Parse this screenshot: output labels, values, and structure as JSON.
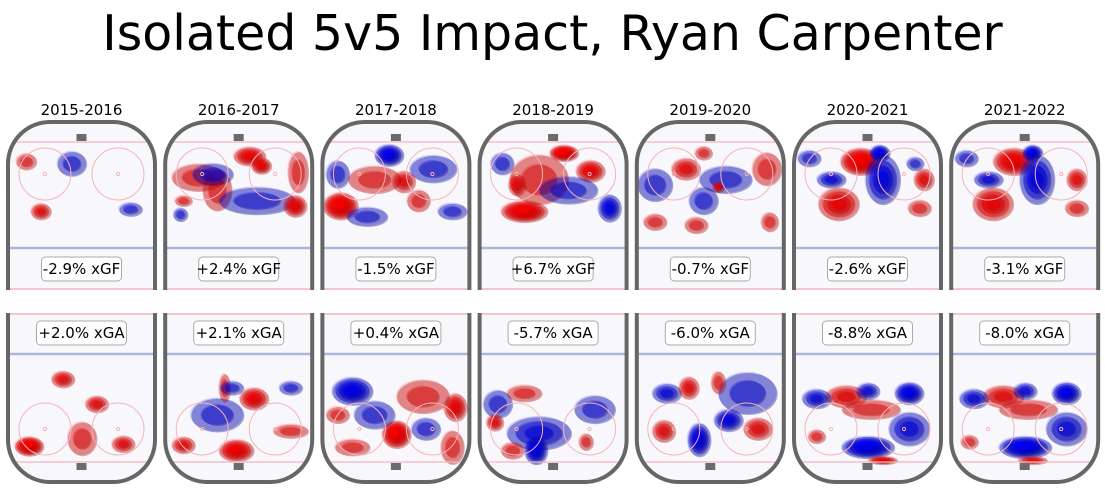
{
  "chart_data": {
    "type": "heatmap",
    "title": "Isolated 5v5 Impact, Ryan Carpenter",
    "panel_rows": [
      "offense (xGF)",
      "defense (xGA)"
    ],
    "colors": {
      "positive": "#ff0000",
      "negative": "#0000ff",
      "ice": "#f8f8fc",
      "boards": "#666666",
      "blue_line": "#a9b7dd",
      "red_line": "#f2b5bd",
      "faceoff_circle": "#f5b3b8",
      "net": "#6b6b6b"
    },
    "seasons": [
      {
        "season": "2015-2016",
        "xgf_label": "-2.9% xGF",
        "xgf_pct": -2.9,
        "xga_label": "+2.0% xGA",
        "xga_pct": 2.0,
        "offense_hotspots": [
          [
            0.12,
            0.18,
            0.07,
            0.06,
            0.35
          ],
          [
            0.43,
            0.2,
            0.1,
            0.09,
            -0.35
          ],
          [
            0.22,
            0.65,
            0.07,
            0.06,
            0.45
          ],
          [
            0.83,
            0.63,
            0.08,
            0.05,
            -0.35
          ]
        ],
        "defense_hotspots": [
          [
            0.37,
            0.22,
            0.08,
            0.06,
            0.45
          ],
          [
            0.6,
            0.45,
            0.08,
            0.06,
            0.5
          ],
          [
            0.14,
            0.84,
            0.1,
            0.07,
            0.95
          ],
          [
            0.5,
            0.77,
            0.1,
            0.12,
            0.4
          ],
          [
            0.78,
            0.82,
            0.08,
            0.06,
            0.5
          ]
        ]
      },
      {
        "season": "2016-2017",
        "xgf_label": "+2.4% xGF",
        "xgf_pct": 2.4,
        "xga_label": "+2.1% xGA",
        "xga_pct": 2.1,
        "offense_hotspots": [
          [
            0.57,
            0.13,
            0.11,
            0.07,
            0.7
          ],
          [
            0.65,
            0.22,
            0.07,
            0.06,
            0.7
          ],
          [
            0.22,
            0.33,
            0.18,
            0.1,
            0.35
          ],
          [
            0.35,
            0.45,
            0.1,
            0.15,
            0.3
          ],
          [
            0.32,
            0.3,
            0.14,
            0.08,
            -0.3
          ],
          [
            0.62,
            0.55,
            0.26,
            0.1,
            -0.35
          ],
          [
            0.88,
            0.6,
            0.08,
            0.08,
            0.7
          ],
          [
            0.9,
            0.28,
            0.07,
            0.15,
            0.35
          ],
          [
            0.12,
            0.55,
            0.06,
            0.04,
            0.3
          ],
          [
            0.1,
            0.68,
            0.05,
            0.05,
            -0.3
          ]
        ],
        "defense_hotspots": [
          [
            0.6,
            0.4,
            0.1,
            0.08,
            0.65
          ],
          [
            0.35,
            0.55,
            0.18,
            0.12,
            -0.35
          ],
          [
            0.48,
            0.88,
            0.12,
            0.08,
            0.8
          ],
          [
            0.12,
            0.83,
            0.08,
            0.06,
            0.5
          ],
          [
            0.4,
            0.3,
            0.04,
            0.1,
            0.3
          ],
          [
            0.45,
            0.3,
            0.08,
            0.05,
            -0.3
          ],
          [
            0.85,
            0.3,
            0.08,
            0.05,
            -0.35
          ],
          [
            0.85,
            0.7,
            0.12,
            0.05,
            0.35
          ]
        ]
      },
      {
        "season": "2017-2018",
        "xgf_label": "-1.5% xGF",
        "xgf_pct": -1.5,
        "xga_label": "+0.4% xGA",
        "xga_pct": 0.4,
        "offense_hotspots": [
          [
            0.45,
            0.12,
            0.1,
            0.08,
            -0.9
          ],
          [
            0.12,
            0.6,
            0.12,
            0.1,
            0.95
          ],
          [
            0.55,
            0.37,
            0.08,
            0.08,
            0.55
          ],
          [
            0.35,
            0.35,
            0.18,
            0.1,
            0.3
          ],
          [
            0.75,
            0.25,
            0.16,
            0.1,
            -0.4
          ],
          [
            0.3,
            0.7,
            0.14,
            0.07,
            -0.4
          ],
          [
            0.88,
            0.65,
            0.1,
            0.06,
            -0.35
          ],
          [
            0.1,
            0.3,
            0.08,
            0.1,
            -0.3
          ],
          [
            0.65,
            0.55,
            0.08,
            0.08,
            0.4
          ]
        ],
        "defense_hotspots": [
          [
            0.2,
            0.33,
            0.14,
            0.1,
            -0.8
          ],
          [
            0.5,
            0.73,
            0.1,
            0.1,
            1.0
          ],
          [
            0.9,
            0.48,
            0.08,
            0.1,
            0.6
          ],
          [
            0.68,
            0.38,
            0.18,
            0.12,
            0.3
          ],
          [
            0.35,
            0.55,
            0.14,
            0.1,
            -0.35
          ],
          [
            0.7,
            0.68,
            0.1,
            0.08,
            -0.4
          ],
          [
            0.2,
            0.85,
            0.12,
            0.06,
            0.35
          ],
          [
            0.88,
            0.85,
            0.08,
            0.12,
            0.4
          ],
          [
            0.1,
            0.55,
            0.08,
            0.06,
            0.35
          ]
        ]
      },
      {
        "season": "2018-2019",
        "xgf_label": "+6.7% xGF",
        "xgf_pct": 6.7,
        "xga_label": "-5.7% xGA",
        "xga_pct": -5.7,
        "offense_hotspots": [
          [
            0.57,
            0.1,
            0.1,
            0.06,
            0.95
          ],
          [
            0.3,
            0.65,
            0.16,
            0.08,
            0.95
          ],
          [
            0.75,
            0.27,
            0.1,
            0.08,
            0.6
          ],
          [
            0.4,
            0.35,
            0.2,
            0.18,
            0.3
          ],
          [
            0.25,
            0.4,
            0.06,
            0.08,
            0.45
          ],
          [
            0.88,
            0.62,
            0.08,
            0.1,
            -0.6
          ],
          [
            0.6,
            0.45,
            0.2,
            0.1,
            -0.3
          ],
          [
            0.15,
            0.2,
            0.08,
            0.08,
            -0.3
          ]
        ],
        "defense_hotspots": [
          [
            0.4,
            0.72,
            0.22,
            0.12,
            -0.55
          ],
          [
            0.38,
            0.88,
            0.08,
            0.1,
            -0.8
          ],
          [
            0.12,
            0.45,
            0.1,
            0.1,
            -0.4
          ],
          [
            0.3,
            0.35,
            0.12,
            0.06,
            0.3
          ],
          [
            0.1,
            0.62,
            0.06,
            0.06,
            0.5
          ],
          [
            0.78,
            0.5,
            0.14,
            0.1,
            -0.35
          ],
          [
            0.22,
            0.88,
            0.08,
            0.06,
            0.4
          ],
          [
            0.72,
            0.8,
            0.05,
            0.06,
            0.4
          ]
        ]
      },
      {
        "season": "2019-2020",
        "xgf_label": "-0.7% xGF",
        "xgf_pct": -0.7,
        "xga_label": "-6.0% xGA",
        "xga_pct": -6.0,
        "offense_hotspots": [
          [
            0.33,
            0.25,
            0.1,
            0.08,
            0.5
          ],
          [
            0.12,
            0.4,
            0.12,
            0.12,
            -0.3
          ],
          [
            0.88,
            0.25,
            0.1,
            0.12,
            0.3
          ],
          [
            0.6,
            0.35,
            0.18,
            0.1,
            -0.35
          ],
          [
            0.45,
            0.55,
            0.1,
            0.1,
            -0.35
          ],
          [
            0.12,
            0.75,
            0.08,
            0.06,
            0.3
          ],
          [
            0.4,
            0.78,
            0.08,
            0.06,
            0.3
          ],
          [
            0.9,
            0.75,
            0.06,
            0.07,
            0.3
          ],
          [
            0.45,
            0.1,
            0.06,
            0.05,
            0.35
          ],
          [
            0.55,
            0.42,
            0.04,
            0.04,
            0.5
          ]
        ],
        "defense_hotspots": [
          [
            0.42,
            0.78,
            0.08,
            0.12,
            -0.9
          ],
          [
            0.62,
            0.6,
            0.1,
            0.08,
            -0.7
          ],
          [
            0.2,
            0.35,
            0.1,
            0.07,
            -0.5
          ],
          [
            0.35,
            0.3,
            0.07,
            0.08,
            0.55
          ],
          [
            0.82,
            0.68,
            0.1,
            0.08,
            0.5
          ],
          [
            0.18,
            0.7,
            0.08,
            0.08,
            0.45
          ],
          [
            0.75,
            0.35,
            0.2,
            0.15,
            -0.3
          ],
          [
            0.55,
            0.25,
            0.05,
            0.08,
            0.3
          ]
        ]
      },
      {
        "season": "2020-2021",
        "xgf_label": "-2.6% xGF",
        "xgf_pct": -2.6,
        "xga_label": "-8.8% xGA",
        "xga_pct": -8.8,
        "offense_hotspots": [
          [
            0.45,
            0.18,
            0.14,
            0.1,
            0.95
          ],
          [
            0.58,
            0.1,
            0.07,
            0.06,
            -0.85
          ],
          [
            0.3,
            0.58,
            0.14,
            0.12,
            0.65
          ],
          [
            0.6,
            0.35,
            0.12,
            0.18,
            -0.6
          ],
          [
            0.25,
            0.35,
            0.1,
            0.06,
            -0.5
          ],
          [
            0.88,
            0.35,
            0.07,
            0.08,
            0.45
          ],
          [
            0.85,
            0.62,
            0.08,
            0.06,
            0.35
          ],
          [
            0.1,
            0.15,
            0.08,
            0.06,
            -0.35
          ],
          [
            0.82,
            0.2,
            0.06,
            0.05,
            -0.3
          ]
        ],
        "defense_hotspots": [
          [
            0.5,
            0.85,
            0.18,
            0.08,
            -0.95
          ],
          [
            0.35,
            0.38,
            0.14,
            0.08,
            0.55
          ],
          [
            0.52,
            0.5,
            0.2,
            0.07,
            0.35
          ],
          [
            0.78,
            0.35,
            0.1,
            0.08,
            -0.75
          ],
          [
            0.5,
            0.33,
            0.08,
            0.06,
            -0.55
          ],
          [
            0.15,
            0.4,
            0.1,
            0.07,
            -0.45
          ],
          [
            0.78,
            0.68,
            0.14,
            0.12,
            -0.45
          ],
          [
            0.15,
            0.75,
            0.06,
            0.05,
            0.35
          ],
          [
            0.6,
            0.97,
            0.1,
            0.03,
            0.6
          ]
        ]
      },
      {
        "season": "2021-2022",
        "xgf_label": "-3.1% xGF",
        "xgf_pct": -3.1,
        "xga_label": "-8.0% xGA",
        "xga_pct": -8.0,
        "offense_hotspots": [
          [
            0.42,
            0.18,
            0.14,
            0.1,
            0.9
          ],
          [
            0.55,
            0.1,
            0.07,
            0.06,
            -0.85
          ],
          [
            0.28,
            0.58,
            0.14,
            0.12,
            0.6
          ],
          [
            0.58,
            0.35,
            0.12,
            0.18,
            -0.6
          ],
          [
            0.25,
            0.35,
            0.1,
            0.06,
            -0.45
          ],
          [
            0.85,
            0.35,
            0.07,
            0.08,
            0.45
          ],
          [
            0.85,
            0.62,
            0.08,
            0.06,
            0.3
          ],
          [
            0.1,
            0.15,
            0.08,
            0.06,
            -0.35
          ]
        ],
        "defense_hotspots": [
          [
            0.5,
            0.85,
            0.18,
            0.08,
            -0.95
          ],
          [
            0.35,
            0.38,
            0.14,
            0.08,
            0.5
          ],
          [
            0.52,
            0.5,
            0.2,
            0.07,
            0.35
          ],
          [
            0.78,
            0.35,
            0.1,
            0.08,
            -0.75
          ],
          [
            0.5,
            0.33,
            0.08,
            0.06,
            -0.55
          ],
          [
            0.15,
            0.4,
            0.1,
            0.07,
            -0.45
          ],
          [
            0.78,
            0.68,
            0.14,
            0.12,
            -0.45
          ],
          [
            0.12,
            0.8,
            0.06,
            0.05,
            0.35
          ],
          [
            0.55,
            0.97,
            0.1,
            0.03,
            0.5
          ]
        ]
      }
    ]
  }
}
